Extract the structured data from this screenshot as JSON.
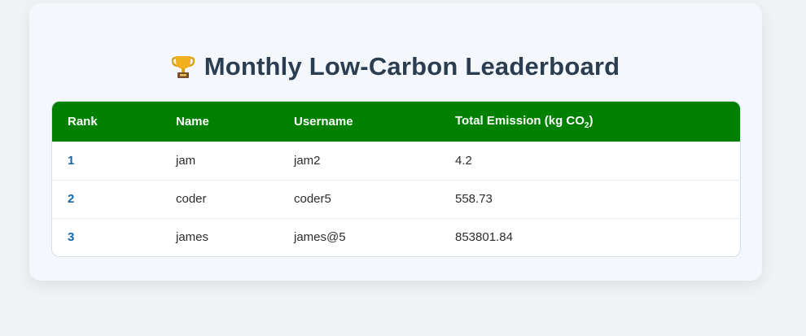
{
  "header": {
    "title": "Monthly Low-Carbon Leaderboard",
    "title_icon": "trophy-icon"
  },
  "table": {
    "columns": [
      "Rank",
      "Name",
      "Username",
      "Total Emission (kg CO",
      "2",
      ")"
    ],
    "rows": [
      {
        "rank": "1",
        "name": "jam",
        "username": "jam2",
        "emission": "4.2"
      },
      {
        "rank": "2",
        "name": "coder",
        "username": "coder5",
        "emission": "558.73"
      },
      {
        "rank": "3",
        "name": "james",
        "username": "james@5",
        "emission": "853801.84"
      }
    ]
  },
  "colors": {
    "header_bg": "#008000",
    "title": "#2b3d50",
    "rank": "#1667a8",
    "card_bg": "#f4f8fc",
    "page_bg": "#f0f2f5"
  }
}
